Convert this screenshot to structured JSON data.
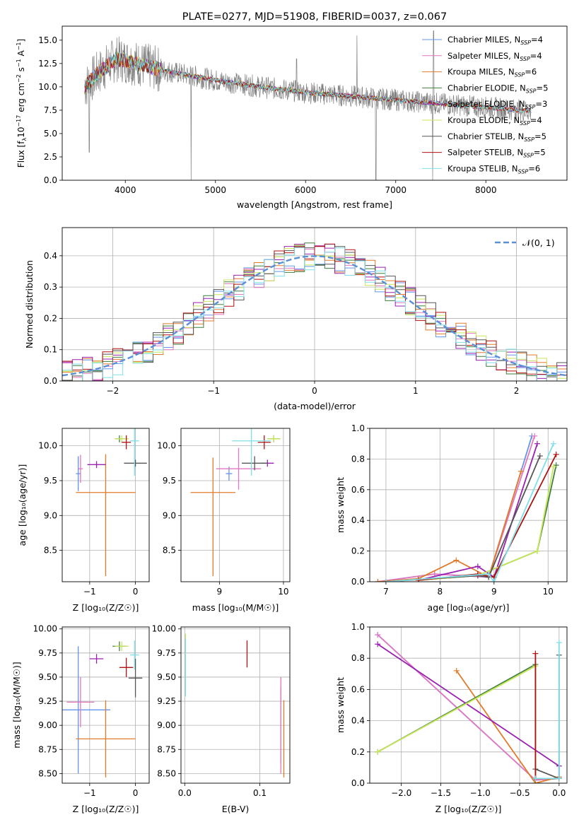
{
  "colors": {
    "chabrier_miles": "#6495ed",
    "salpeter_miles": "#e377c2",
    "kroupa_miles": "#e07b2a",
    "chabrier_elodie": "#3f7f3f",
    "salpeter_elodie": "#9a20b0",
    "kroupa_elodie": "#c8e65a",
    "chabrier_stelib": "#555555",
    "salpeter_stelib": "#b01010",
    "kroupa_stelib": "#7fdfe8",
    "data": "#808080",
    "grid": "#b0b0b0",
    "normal": "#5b8fd6"
  },
  "chart_data": [
    {
      "type": "line",
      "title": "PLATE=0277, MJD=51908, FIBERID=0037, z=0.067",
      "xlabel": "wavelength [Angstrom, rest frame]",
      "ylabel": "Flux [f_λ 10^-17 erg cm^-2 s^-1 A^-1]",
      "xlim": [
        3300,
        8900
      ],
      "ylim": [
        0,
        16.5
      ],
      "xticks": [
        4000,
        5000,
        6000,
        7000,
        8000
      ],
      "yticks": [
        0.0,
        2.5,
        5.0,
        7.5,
        10.0,
        12.5,
        15.0
      ],
      "grid": false,
      "legend_position": "top-right",
      "legend": [
        {
          "base": "Chabrier MILES, N",
          "sub": "SSP",
          "tail": "=4",
          "color_key": "chabrier_miles"
        },
        {
          "base": "Salpeter MILES, N",
          "sub": "SSP",
          "tail": "=4",
          "color_key": "salpeter_miles"
        },
        {
          "base": "Kroupa MILES, N",
          "sub": "SSP",
          "tail": "=6",
          "color_key": "kroupa_miles"
        },
        {
          "base": "Chabrier ELODIE, N",
          "sub": "SSP",
          "tail": "=5",
          "color_key": "chabrier_elodie"
        },
        {
          "base": "Salpeter ELODIE, N",
          "sub": "SSP",
          "tail": "=3",
          "color_key": "salpeter_elodie"
        },
        {
          "base": "Kroupa ELODIE, N",
          "sub": "SSP",
          "tail": "=4",
          "color_key": "kroupa_elodie"
        },
        {
          "base": "Chabrier STELIB, N",
          "sub": "SSP",
          "tail": "=5",
          "color_key": "chabrier_stelib"
        },
        {
          "base": "Salpeter STELIB, N",
          "sub": "SSP",
          "tail": "=5",
          "color_key": "salpeter_stelib"
        },
        {
          "base": "Kroupa STELIB, N",
          "sub": "SSP",
          "tail": "=6",
          "color_key": "kroupa_stelib"
        }
      ],
      "continuum": {
        "x": [
          3550,
          3700,
          3900,
          4100,
          4400,
          5000,
          5500,
          6000,
          6500,
          7000,
          7500,
          8000,
          8500
        ],
        "y": [
          10.0,
          11.5,
          13.0,
          12.6,
          11.8,
          10.7,
          10.0,
          9.4,
          9.0,
          8.6,
          8.2,
          7.8,
          7.4
        ]
      },
      "data_dips": [
        {
          "x": 3600,
          "y": 3
        },
        {
          "x": 4730,
          "y": 0
        },
        {
          "x": 6780,
          "y": 0
        },
        {
          "x": 7410,
          "y": 0
        }
      ],
      "data_spikes": [
        {
          "x": 5900,
          "y": 13
        },
        {
          "x": 6570,
          "y": 15.5
        },
        {
          "x": 7420,
          "y": 16
        }
      ]
    },
    {
      "type": "line",
      "xlabel": "(data-model)/error",
      "ylabel": "Normed distribution",
      "xlim": [
        -2.5,
        2.5
      ],
      "ylim": [
        0,
        0.49
      ],
      "xticks": [
        -2,
        -1,
        0,
        1,
        2
      ],
      "yticks": [
        0.0,
        0.1,
        0.2,
        0.3,
        0.4
      ],
      "grid": true,
      "legend_position": "top-right",
      "legend_label": "𝒩(0, 1)",
      "series": [
        {
          "name": "𝒩(0, 1)",
          "mean": 0,
          "sigma": 1,
          "style": "dashed"
        }
      ]
    },
    {
      "type": "scatter",
      "xlabel": "Z [log₁₀(Z/Z☉)]",
      "ylabel": "age  [log₁₀(age/yr)]",
      "xlim": [
        -1.6,
        0.3
      ],
      "ylim": [
        8.05,
        10.25
      ],
      "xticks": [
        -1,
        0
      ],
      "yticks": [
        8.5,
        9.0,
        9.5,
        10.0
      ],
      "grid": true,
      "points": [
        {
          "color_key": "chabrier_miles",
          "x": -1.25,
          "y": 9.6,
          "xerr": 0.05,
          "yerr": 0.25
        },
        {
          "color_key": "salpeter_miles",
          "x": -1.2,
          "y": 9.67,
          "xerr": 0.05,
          "yerr": 0.2
        },
        {
          "color_key": "kroupa_miles",
          "x": -0.65,
          "y": 9.33,
          "xerr": 0.65,
          "yerr": 0.55,
          "ylo": 1.2
        },
        {
          "color_key": "chabrier_elodie",
          "x": -0.35,
          "y": 10.1,
          "xerr": 0.1,
          "yerr": 0.05
        },
        {
          "color_key": "salpeter_elodie",
          "x": -0.85,
          "y": 9.73,
          "xerr": 0.2,
          "yerr": 0.05
        },
        {
          "color_key": "kroupa_elodie",
          "x": -0.3,
          "y": 10.1,
          "xerr": 0.15,
          "yerr": 0.05
        },
        {
          "color_key": "chabrier_stelib",
          "x": 0.0,
          "y": 9.75,
          "xerr": 0.25,
          "yerr": 0.05
        },
        {
          "color_key": "salpeter_stelib",
          "x": -0.2,
          "y": 10.05,
          "xerr": 0.1,
          "yerr": 0.1
        },
        {
          "color_key": "kroupa_stelib",
          "x": -0.02,
          "y": 10.07,
          "xerr": 0.1,
          "yerr": 0.5
        }
      ]
    },
    {
      "type": "scatter",
      "xlabel": "mass [log₁₀(M/M☉)]",
      "ylabel": "",
      "xlim": [
        8.4,
        10.1
      ],
      "ylim": [
        8.05,
        10.25
      ],
      "xticks": [
        9,
        10
      ],
      "yticks": [
        8.5,
        9.0,
        9.5,
        10.0
      ],
      "grid": true,
      "points": [
        {
          "color_key": "chabrier_miles",
          "x": 9.15,
          "y": 9.6,
          "xerr": 0.05,
          "yerr": 0.1
        },
        {
          "color_key": "salpeter_miles",
          "x": 9.3,
          "y": 9.67,
          "xerr": 0.35,
          "yerr": 0.3
        },
        {
          "color_key": "kroupa_miles",
          "x": 8.9,
          "y": 9.33,
          "xerr": 0.35,
          "yerr": 0.5,
          "ylo": 1.2
        },
        {
          "color_key": "chabrier_elodie",
          "x": 9.85,
          "y": 10.1,
          "xerr": 0.1,
          "yerr": 0.05
        },
        {
          "color_key": "salpeter_elodie",
          "x": 9.75,
          "y": 9.75,
          "xerr": 0.1,
          "yerr": 0.05
        },
        {
          "color_key": "kroupa_elodie",
          "x": 9.85,
          "y": 10.1,
          "xerr": 0.1,
          "yerr": 0.05
        },
        {
          "color_key": "chabrier_stelib",
          "x": 9.55,
          "y": 9.75,
          "xerr": 0.2,
          "yerr": 0.1
        },
        {
          "color_key": "salpeter_stelib",
          "x": 9.7,
          "y": 10.05,
          "xerr": 0.1,
          "yerr": 0.1
        },
        {
          "color_key": "kroupa_stelib",
          "x": 9.5,
          "y": 10.07,
          "xerr": 0.3,
          "yerr": 0.5
        }
      ]
    },
    {
      "type": "line",
      "xlabel": "age  [log₁₀(age/yr)]",
      "ylabel": "mass weight",
      "xlim": [
        6.7,
        10.35
      ],
      "ylim": [
        0,
        1.0
      ],
      "xticks": [
        7,
        8,
        9,
        10
      ],
      "yticks": [
        0.0,
        0.2,
        0.4,
        0.6,
        0.8,
        1.0
      ],
      "grid": true,
      "series": [
        {
          "color_key": "chabrier_miles",
          "x": [
            6.85,
            7.9,
            8.9,
            9.7
          ],
          "y": [
            0.0,
            0.05,
            0.03,
            0.95
          ]
        },
        {
          "color_key": "salpeter_miles",
          "x": [
            6.85,
            7.9,
            8.9,
            9.75
          ],
          "y": [
            0.0,
            0.05,
            0.03,
            0.95
          ]
        },
        {
          "color_key": "kroupa_miles",
          "x": [
            6.85,
            7.6,
            8.3,
            8.9,
            9.5
          ],
          "y": [
            0.0,
            0.02,
            0.14,
            0.03,
            0.72
          ]
        },
        {
          "color_key": "chabrier_elodie",
          "x": [
            7.6,
            8.7,
            9.8,
            10.15
          ],
          "y": [
            0.01,
            0.04,
            0.2,
            0.76
          ]
        },
        {
          "color_key": "salpeter_elodie",
          "x": [
            7.6,
            8.7,
            9.0,
            9.8
          ],
          "y": [
            0.01,
            0.1,
            0.03,
            0.9
          ]
        },
        {
          "color_key": "kroupa_elodie",
          "x": [
            7.6,
            8.7,
            9.8,
            10.1
          ],
          "y": [
            0.01,
            0.04,
            0.2,
            0.75
          ]
        },
        {
          "color_key": "chabrier_stelib",
          "x": [
            7.0,
            8.7,
            8.9,
            9.85
          ],
          "y": [
            0.0,
            0.04,
            0.03,
            0.82
          ]
        },
        {
          "color_key": "salpeter_stelib",
          "x": [
            7.6,
            8.7,
            9.0,
            10.15
          ],
          "y": [
            0.01,
            0.05,
            0.03,
            0.83
          ]
        },
        {
          "color_key": "kroupa_stelib",
          "x": [
            7.0,
            8.9,
            9.0,
            10.1
          ],
          "y": [
            0.0,
            0.05,
            0.0,
            0.9
          ]
        }
      ]
    },
    {
      "type": "scatter",
      "xlabel": "Z [log₁₀(Z/Z☉)]",
      "ylabel": "mass [log₁₀(M/M☉)]",
      "xlim": [
        -1.6,
        0.3
      ],
      "ylim": [
        8.4,
        10.02
      ],
      "xticks": [
        -1,
        0
      ],
      "yticks": [
        8.5,
        8.75,
        9.0,
        9.25,
        9.5,
        9.75,
        10.0
      ],
      "grid": true,
      "points": [
        {
          "color_key": "chabrier_miles",
          "x": -1.25,
          "y": 9.16,
          "xerr": 0.7,
          "yerr": 0.66
        },
        {
          "color_key": "salpeter_miles",
          "x": -1.2,
          "y": 9.24,
          "xerr": 0.3,
          "yerr": 0.26
        },
        {
          "color_key": "kroupa_miles",
          "x": -0.65,
          "y": 8.86,
          "xerr": 0.65,
          "yerr": 0.4
        },
        {
          "color_key": "chabrier_elodie",
          "x": -0.35,
          "y": 9.82,
          "xerr": 0.15,
          "yerr": 0.05
        },
        {
          "color_key": "salpeter_elodie",
          "x": -0.85,
          "y": 9.69,
          "xerr": 0.15,
          "yerr": 0.05
        },
        {
          "color_key": "kroupa_elodie",
          "x": -0.3,
          "y": 9.82,
          "xerr": 0.15,
          "yerr": 0.05
        },
        {
          "color_key": "chabrier_stelib",
          "x": 0.0,
          "y": 9.49,
          "xerr": 0.15,
          "yerr": 0.2
        },
        {
          "color_key": "salpeter_stelib",
          "x": -0.2,
          "y": 9.6,
          "xerr": 0.15,
          "yerr": 0.1
        },
        {
          "color_key": "kroupa_stelib",
          "x": -0.02,
          "y": 9.73,
          "xerr": 0.1,
          "yerr": 0.15
        }
      ]
    },
    {
      "type": "scatter",
      "xlabel": "E(B-V)",
      "ylabel": "",
      "xlim": [
        -0.005,
        0.14
      ],
      "ylim": [
        8.4,
        10.02
      ],
      "xticks": [
        0.0,
        0.1
      ],
      "yticks": [
        8.5,
        8.75,
        9.0,
        9.25,
        9.5,
        9.75,
        10.0
      ],
      "grid": true,
      "points": [
        {
          "color_key": "chabrier_miles",
          "x": 0.128,
          "y": 9.0,
          "xerr": 0,
          "yerr": 0.4
        },
        {
          "color_key": "salpeter_miles",
          "x": 0.128,
          "y": 9.0,
          "xerr": 0,
          "yerr": 0.5
        },
        {
          "color_key": "kroupa_miles",
          "x": 0.132,
          "y": 8.86,
          "xerr": 0,
          "yerr": 0.4
        },
        {
          "color_key": "kroupa_elodie",
          "x": 0.001,
          "y": 9.65,
          "xerr": 0,
          "yerr": 0.3
        },
        {
          "color_key": "kroupa_stelib",
          "x": 0.001,
          "y": 9.6,
          "xerr": 0,
          "yerr": 0.3
        },
        {
          "color_key": "salpeter_stelib",
          "x": 0.083,
          "y": 9.74,
          "xerr": 0,
          "yerr": 0.14
        }
      ]
    },
    {
      "type": "line",
      "xlabel": "Z [log₁₀(Z/Z☉)]",
      "ylabel": "mass weight",
      "xlim": [
        -2.4,
        0.1
      ],
      "ylim": [
        0,
        1.0
      ],
      "xticks": [
        -2.0,
        -1.5,
        -1.0,
        -0.5,
        0.0
      ],
      "yticks": [
        0.0,
        0.2,
        0.4,
        0.6,
        0.8,
        1.0
      ],
      "grid": true,
      "series": [
        {
          "color_key": "chabrier_miles",
          "x": [
            -2.3,
            -0.3,
            0.0
          ],
          "y": [
            0.95,
            0.02,
            0.03
          ]
        },
        {
          "color_key": "salpeter_miles",
          "x": [
            -2.3,
            -0.3,
            0.0
          ],
          "y": [
            0.95,
            0.02,
            0.03
          ]
        },
        {
          "color_key": "kroupa_miles",
          "x": [
            -1.3,
            -0.3,
            0.0
          ],
          "y": [
            0.72,
            0.0,
            0.04
          ]
        },
        {
          "color_key": "chabrier_elodie",
          "x": [
            -2.3,
            -0.3,
            -0.3,
            0.0
          ],
          "y": [
            0.2,
            0.76,
            0.03,
            0.03
          ]
        },
        {
          "color_key": "salpeter_elodie",
          "x": [
            -2.3,
            0.0,
            0.0
          ],
          "y": [
            0.89,
            0.11,
            0.03
          ]
        },
        {
          "color_key": "kroupa_elodie",
          "x": [
            -2.3,
            -0.3,
            -0.3,
            0.0
          ],
          "y": [
            0.2,
            0.75,
            0.03,
            0.03
          ]
        },
        {
          "color_key": "chabrier_stelib",
          "x": [
            -0.3,
            0.0,
            0.0
          ],
          "y": [
            0.09,
            0.03,
            0.82
          ]
        },
        {
          "color_key": "salpeter_stelib",
          "x": [
            -0.3,
            -0.3,
            0.0
          ],
          "y": [
            0.83,
            0.03,
            0.03
          ]
        },
        {
          "color_key": "kroupa_stelib",
          "x": [
            -0.3,
            0.0,
            0.0
          ],
          "y": [
            0.03,
            0.03,
            0.9
          ]
        }
      ]
    }
  ]
}
